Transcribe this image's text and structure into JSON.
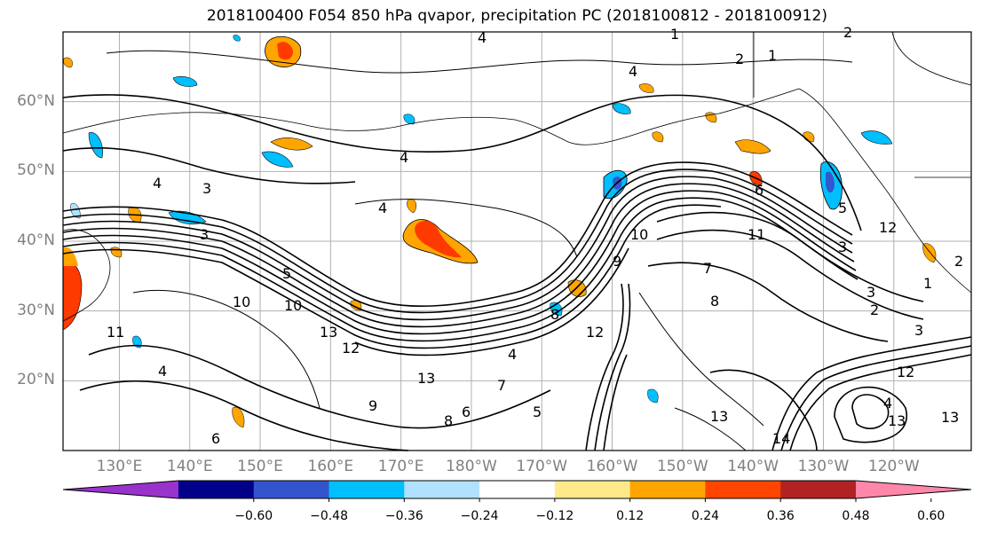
{
  "title": "2018100400 F054 850 hPa qvapor, precipitation PC (2018100812 - 2018100912)",
  "map": {
    "lat_labels": [
      {
        "label": "60°N",
        "lat": 60
      },
      {
        "label": "50°N",
        "lat": 50
      },
      {
        "label": "40°N",
        "lat": 40
      },
      {
        "label": "30°N",
        "lat": 30
      },
      {
        "label": "20°N",
        "lat": 20
      }
    ],
    "lon_labels": [
      {
        "label": "130°E",
        "lon": 130
      },
      {
        "label": "140°E",
        "lon": 140
      },
      {
        "label": "150°E",
        "lon": 150
      },
      {
        "label": "160°E",
        "lon": 160
      },
      {
        "label": "170°E",
        "lon": 170
      },
      {
        "label": "180°W",
        "lon": 180
      },
      {
        "label": "170°W",
        "lon": 190
      },
      {
        "label": "160°W",
        "lon": 200
      },
      {
        "label": "150°W",
        "lon": 210
      },
      {
        "label": "140°W",
        "lon": 220
      },
      {
        "label": "130°W",
        "lon": 230
      },
      {
        "label": "120°W",
        "lon": 240
      }
    ],
    "lon_range": [
      122,
      251
    ],
    "lat_range": [
      10,
      70
    ],
    "contour_labels": [
      "1",
      "2",
      "4",
      "2",
      "1",
      "4",
      "3",
      "4",
      "4",
      "4",
      "5",
      "3",
      "6",
      "7",
      "10",
      "11",
      "12",
      "13",
      "9",
      "8",
      "6",
      "4",
      "5",
      "3",
      "2",
      "12",
      "13",
      "14",
      "13",
      "12",
      "10",
      "13",
      "4",
      "8",
      "3",
      "3",
      "4",
      "2",
      "1",
      "13",
      "12",
      "11",
      "10",
      "9",
      "8",
      "7",
      "6",
      "5"
    ],
    "fill_colors": {
      "orange": "#ffa500",
      "light_yellow": "#ffe98a",
      "red": "#ff3a00",
      "cyan": "#00bfff",
      "light_blue": "#b0e2ff",
      "blue": "#3358cc"
    }
  },
  "colorbar": {
    "colors": [
      "#9933cc",
      "#000088",
      "#3355cc",
      "#00bfff",
      "#b0e2ff",
      "#ffffff",
      "#ffe98a",
      "#ffa500",
      "#ff4500",
      "#b22222",
      "#ff88aa"
    ],
    "tick_labels": [
      "−0.60",
      "−0.48",
      "−0.36",
      "−0.24",
      "−0.12",
      "0.12",
      "0.24",
      "0.36",
      "0.48",
      "0.60"
    ]
  }
}
